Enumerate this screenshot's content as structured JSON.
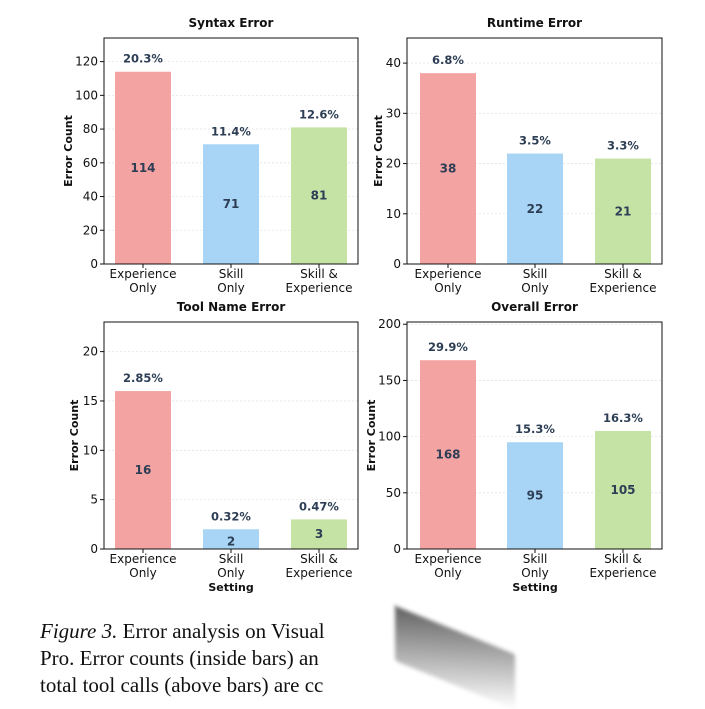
{
  "colors": {
    "experience_only": "#f4a3a3",
    "skill_only": "#a8d5f5",
    "skill_and_experience": "#c6e3a6",
    "label_text": "#2d3e55"
  },
  "chart_data": [
    {
      "type": "bar",
      "title": "Syntax Error",
      "ylabel": "Error Count",
      "xlabel": "",
      "categories": [
        "Experience Only",
        "Skill Only",
        "Skill & Experience"
      ],
      "values": [
        114,
        71,
        81
      ],
      "percentages": [
        "20.3%",
        "11.4%",
        "12.6%"
      ],
      "ylim": [
        0,
        134
      ],
      "yticks": [
        0,
        20,
        40,
        60,
        80,
        100,
        120
      ]
    },
    {
      "type": "bar",
      "title": "Runtime Error",
      "ylabel": "Error Count",
      "xlabel": "",
      "categories": [
        "Experience Only",
        "Skill Only",
        "Skill & Experience"
      ],
      "values": [
        38,
        22,
        21
      ],
      "percentages": [
        "6.8%",
        "3.5%",
        "3.3%"
      ],
      "ylim": [
        0,
        45
      ],
      "yticks": [
        0,
        10,
        20,
        30,
        40
      ]
    },
    {
      "type": "bar",
      "title": "Tool Name Error",
      "ylabel": "Error Count",
      "xlabel": "Setting",
      "categories": [
        "Experience Only",
        "Skill Only",
        "Skill & Experience"
      ],
      "values": [
        16,
        2,
        3
      ],
      "percentages": [
        "2.85%",
        "0.32%",
        "0.47%"
      ],
      "ylim": [
        0,
        23
      ],
      "yticks": [
        0,
        5,
        10,
        15,
        20
      ]
    },
    {
      "type": "bar",
      "title": "Overall Error",
      "ylabel": "Error Count",
      "xlabel": "Setting",
      "categories": [
        "Experience Only",
        "Skill Only",
        "Skill & Experience"
      ],
      "values": [
        168,
        95,
        105
      ],
      "percentages": [
        "29.9%",
        "15.3%",
        "16.3%"
      ],
      "ylim": [
        0,
        202
      ],
      "yticks": [
        0,
        50,
        100,
        150,
        200
      ]
    }
  ],
  "caption": {
    "figure_label": "Figure 3.",
    "line1": "Error analysis on Visual",
    "line2": "Pro. Error counts (inside bars) an",
    "line3": "total tool calls (above bars) are cc"
  }
}
